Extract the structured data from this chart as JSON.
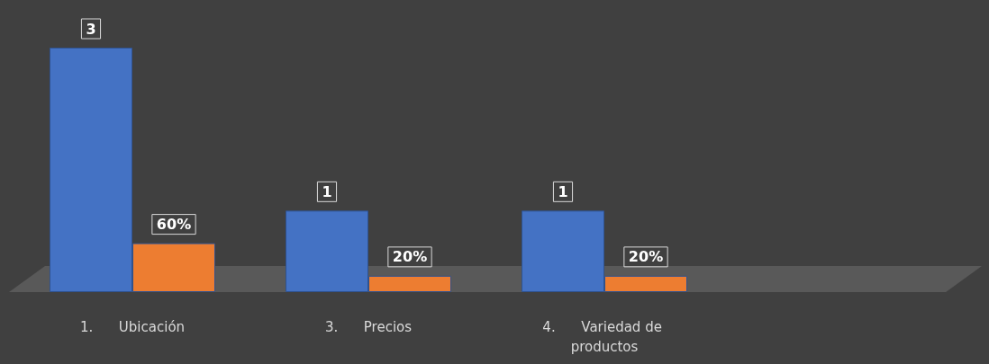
{
  "chart_data": {
    "type": "bar",
    "categories": [
      "1.      Ubicación",
      "3.      Precios",
      "4.      Variedad de productos"
    ],
    "series": [
      {
        "color": "#4472c4",
        "values": [
          3,
          1,
          1
        ],
        "value_labels": [
          "3",
          "1",
          "1"
        ]
      },
      {
        "color": "#ed7d31",
        "values": [
          0.6,
          0.2,
          0.2
        ],
        "value_labels": [
          "60%",
          "20%",
          "20%"
        ]
      }
    ]
  }
}
